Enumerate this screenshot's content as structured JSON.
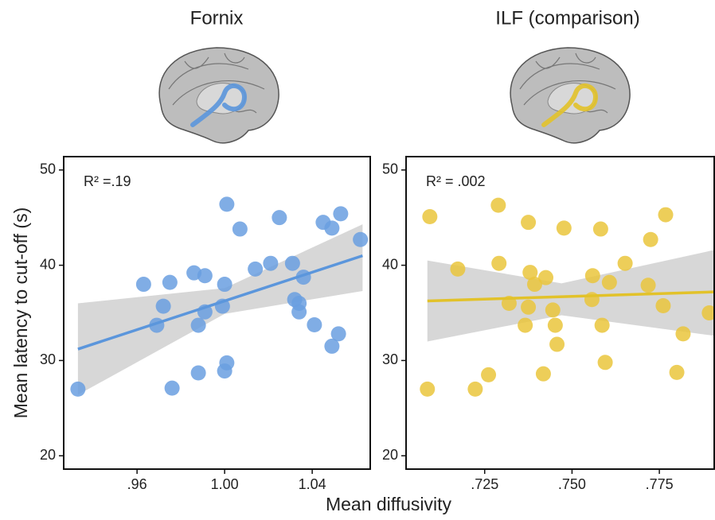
{
  "chart_data": [
    {
      "type": "scatter",
      "title": "Fornix",
      "annotation": "R² =.19",
      "ylabel": "Mean latency to cut-off (s)",
      "xlabel": "Mean diffusivity",
      "color": "#6a9fe0",
      "line_color": "#5b96dc",
      "x": [
        0.933,
        0.963,
        0.975,
        0.972,
        0.969,
        0.976,
        0.986,
        0.991,
        0.988,
        0.991,
        0.988,
        1.001,
        1.0,
        0.999,
        1.001,
        1.0,
        1.007,
        1.014,
        1.021,
        1.025,
        1.031,
        1.032,
        1.034,
        1.034,
        1.036,
        1.041,
        1.045,
        1.049,
        1.053,
        1.052,
        1.049,
        1.062
      ],
      "values": [
        27.0,
        38.0,
        38.2,
        35.7,
        33.7,
        27.1,
        39.2,
        38.9,
        33.7,
        35.1,
        28.7,
        46.4,
        38.0,
        35.7,
        29.75,
        28.9,
        43.8,
        39.6,
        40.2,
        45.0,
        40.2,
        36.4,
        36.0,
        35.1,
        38.75,
        33.75,
        44.5,
        43.9,
        45.4,
        32.8,
        31.5,
        42.7
      ],
      "trend": {
        "x": [
          0.933,
          1.063
        ],
        "y": [
          31.2,
          41.0
        ]
      },
      "band": {
        "x": [
          0.933,
          1.0,
          1.063
        ],
        "lower": [
          26.4,
          34.9,
          37.3
        ],
        "upper": [
          36.0,
          37.6,
          44.3
        ]
      },
      "xlim": [
        0.9265,
        1.0665
      ],
      "ylim": [
        18.6,
        51.4
      ],
      "xticks": [
        {
          "value": 0.96,
          "label": ".96"
        },
        {
          "value": 1.0,
          "label": "1.00"
        },
        {
          "value": 1.04,
          "label": "1.04"
        }
      ],
      "yticks": [
        20,
        30,
        40,
        50
      ]
    },
    {
      "type": "scatter",
      "title": "ILF (comparison)",
      "annotation": "R² = .002",
      "color": "#eac53c",
      "line_color": "#e2c22a",
      "x": [
        0.7093,
        0.7086,
        0.7173,
        0.7223,
        0.7261,
        0.7289,
        0.7291,
        0.732,
        0.7366,
        0.7375,
        0.738,
        0.7375,
        0.7393,
        0.7418,
        0.7425,
        0.7445,
        0.7452,
        0.7457,
        0.7477,
        0.7559,
        0.7557,
        0.7582,
        0.7586,
        0.7607,
        0.7595,
        0.7652,
        0.7718,
        0.7725,
        0.7761,
        0.7768,
        0.78,
        0.7818,
        0.7893
      ],
      "values": [
        45.1,
        27.0,
        39.6,
        27.0,
        28.5,
        46.3,
        40.2,
        36.0,
        33.7,
        44.5,
        39.25,
        35.6,
        38.0,
        28.6,
        38.7,
        35.3,
        33.7,
        31.7,
        43.9,
        38.9,
        36.4,
        43.8,
        33.7,
        38.2,
        29.8,
        40.2,
        37.9,
        42.7,
        35.75,
        45.3,
        28.75,
        32.8,
        35.0
      ],
      "trend": {
        "x": [
          0.7086,
          0.7907
        ],
        "y": [
          36.25,
          37.2
        ]
      },
      "band": {
        "x": [
          0.7086,
          0.747,
          0.7907
        ],
        "lower": [
          32.0,
          34.75,
          32.6
        ],
        "upper": [
          40.5,
          38.1,
          41.6
        ]
      },
      "xlim": [
        0.7025,
        0.7907
      ],
      "ylim": [
        18.6,
        51.4
      ],
      "xticks": [
        {
          "value": 0.725,
          "label": ".725"
        },
        {
          "value": 0.75,
          "label": ".750"
        },
        {
          "value": 0.775,
          "label": ".775"
        }
      ],
      "yticks": [
        20,
        30,
        40,
        50
      ]
    }
  ]
}
